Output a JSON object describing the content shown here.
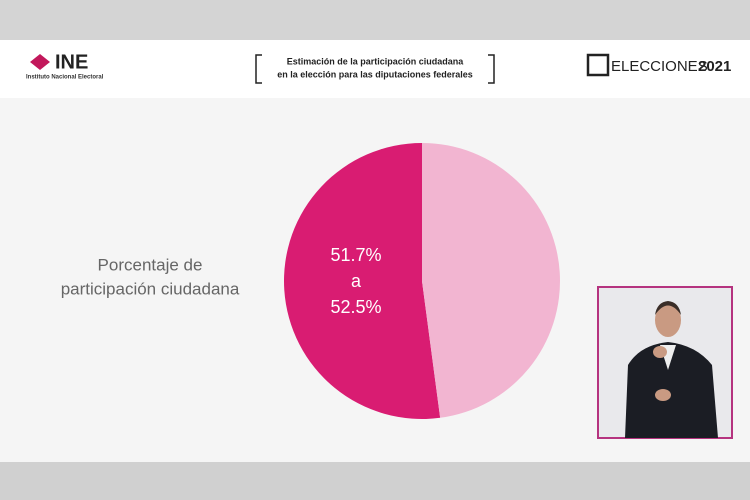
{
  "header": {
    "logo_left": "INE",
    "logo_left_sub": "Instituto Nacional Electoral",
    "title_lines": [
      "Estimación de la participación ciudadana",
      "en la elección para las diputaciones federales"
    ],
    "logo_right_a": "ELECCIONES",
    "logo_right_b": "2021"
  },
  "chart_data": {
    "type": "pie",
    "label_lines": [
      "Porcentaje de",
      "participación ciudadana"
    ],
    "values": [
      52.1,
      47.9
    ],
    "colors": [
      "#d91c72",
      "#f2b5d1"
    ],
    "slice_label_lines": [
      "51.7%",
      "a",
      "52.5%"
    ]
  }
}
